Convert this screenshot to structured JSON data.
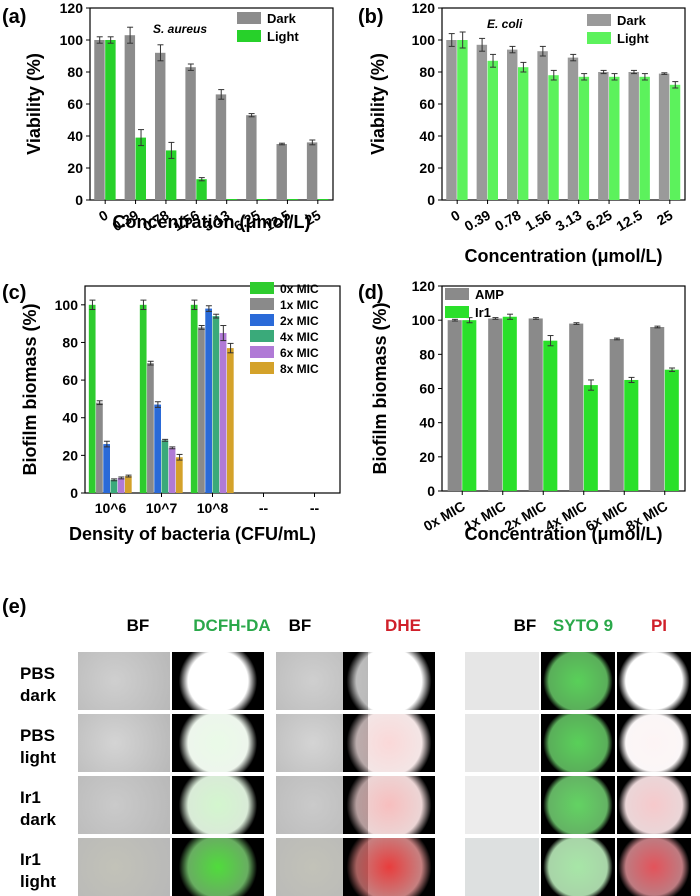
{
  "panels": {
    "a": "(a)",
    "b": "(b)",
    "c": "(c)",
    "d": "(d)",
    "e": "(e)"
  },
  "chart_data": [
    {
      "id": "a",
      "type": "bar",
      "annotation": "S. aureus",
      "xlabel": "Concentration (μmol/L)",
      "ylabel": "Viability (%)",
      "ylim": [
        0,
        120
      ],
      "yticks": [
        0,
        20,
        40,
        60,
        80,
        100,
        120
      ],
      "categories": [
        "0",
        "0.39",
        "0.78",
        "1.56",
        "3.13",
        "6.25",
        "12.5",
        "25"
      ],
      "series": [
        {
          "name": "Dark",
          "color": "#8c8c8c",
          "values": [
            100,
            103,
            92,
            83,
            66,
            53,
            35,
            36
          ],
          "errors": [
            2,
            5,
            5,
            2,
            3,
            1,
            0.5,
            1.5
          ]
        },
        {
          "name": "Light",
          "color": "#27d12a",
          "values": [
            100,
            39,
            31,
            13,
            0,
            0,
            0,
            0
          ],
          "errors": [
            2,
            5,
            5,
            1,
            0,
            0,
            0,
            0
          ]
        }
      ],
      "legend": "top-right",
      "grid": false
    },
    {
      "id": "b",
      "type": "bar",
      "annotation": "E. coli",
      "xlabel": "Concentration (μmol/L)",
      "ylabel": "Viability (%)",
      "ylim": [
        0,
        120
      ],
      "yticks": [
        0,
        20,
        40,
        60,
        80,
        100,
        120
      ],
      "categories": [
        "0",
        "0.39",
        "0.78",
        "1.56",
        "3.13",
        "6.25",
        "12.5",
        "25"
      ],
      "series": [
        {
          "name": "Dark",
          "color": "#9a9a9a",
          "values": [
            100,
            97,
            94,
            93,
            89,
            80,
            80,
            79
          ],
          "errors": [
            4,
            4,
            2,
            3,
            2,
            1,
            1,
            0.5
          ]
        },
        {
          "name": "Light",
          "color": "#5cf25c",
          "values": [
            100,
            87,
            83,
            78,
            77,
            77,
            77,
            72
          ],
          "errors": [
            5,
            4,
            3,
            3,
            2,
            2,
            2,
            2
          ]
        }
      ],
      "legend": "top-right",
      "grid": false
    },
    {
      "id": "c",
      "type": "bar",
      "xlabel": "Density of bacteria (CFU/mL)",
      "ylabel": "Biofilm biomass (%)",
      "ylim": [
        0,
        110
      ],
      "yticks": [
        0,
        20,
        40,
        60,
        80,
        100
      ],
      "categories": [
        "10^6",
        "10^7",
        "10^8",
        "--",
        "--"
      ],
      "series": [
        {
          "name": "0x MIC",
          "color": "#2ecc2e",
          "values": [
            100,
            100,
            100,
            null,
            null
          ],
          "errors": [
            2.5,
            2.5,
            2.5,
            0,
            0
          ]
        },
        {
          "name": "1x MIC",
          "color": "#8a8a8a",
          "values": [
            48,
            69,
            88,
            null,
            null
          ],
          "errors": [
            1,
            1,
            1,
            0,
            0
          ]
        },
        {
          "name": "2x MIC",
          "color": "#2a6ad8",
          "values": [
            26,
            47,
            98,
            null,
            null
          ],
          "errors": [
            1.5,
            1.5,
            1.5,
            0,
            0
          ]
        },
        {
          "name": "4x MIC",
          "color": "#3aaa7a",
          "values": [
            7,
            28,
            94,
            null,
            null
          ],
          "errors": [
            0.5,
            0.5,
            1,
            0,
            0
          ]
        },
        {
          "name": "6x MIC",
          "color": "#b07ad6",
          "values": [
            8,
            24,
            85,
            null,
            null
          ],
          "errors": [
            0.5,
            0.5,
            4,
            0,
            0
          ]
        },
        {
          "name": "8x MIC",
          "color": "#d4a22a",
          "values": [
            9,
            19,
            77,
            null,
            null
          ],
          "errors": [
            0.5,
            1.5,
            2.5,
            0,
            0
          ]
        }
      ],
      "legend": "top-right",
      "grid": false
    },
    {
      "id": "d",
      "type": "bar",
      "xlabel": "Concentration (μmol/L)",
      "ylabel": "Biofilm biomass (%)",
      "ylim": [
        0,
        120
      ],
      "yticks": [
        0,
        20,
        40,
        60,
        80,
        100,
        120
      ],
      "categories": [
        "0x MIC",
        "1x MIC",
        "2x MIC",
        "4x MIC",
        "6x MIC",
        "8x MIC"
      ],
      "series": [
        {
          "name": "AMP",
          "color": "#8a8a8a",
          "values": [
            100,
            101,
            101,
            98,
            89,
            96
          ],
          "errors": [
            0.5,
            0.5,
            0.5,
            0.5,
            0.5,
            0.5
          ]
        },
        {
          "name": "Ir1",
          "color": "#2ae02a",
          "values": [
            100,
            102,
            88,
            62,
            65,
            71
          ],
          "errors": [
            1.5,
            1.5,
            3,
            3,
            1.5,
            1
          ]
        }
      ],
      "legend": "top-left",
      "grid": false
    }
  ],
  "microscopy": {
    "headers": [
      {
        "text": "BF",
        "color": "#000000"
      },
      {
        "text": "DCFH-DA",
        "color": "#2aa84a"
      },
      {
        "text": "BF",
        "color": "#000000"
      },
      {
        "text": "DHE",
        "color": "#d0202a"
      },
      {
        "text": "BF",
        "color": "#000000"
      },
      {
        "text": "SYTO 9",
        "color": "#2aa84a"
      },
      {
        "text": "PI",
        "color": "#d0202a"
      }
    ],
    "rows": [
      {
        "line1": "PBS",
        "line2": "dark"
      },
      {
        "line1": "PBS",
        "line2": "light"
      },
      {
        "line1": "Ir1",
        "line2": "dark"
      },
      {
        "line1": "Ir1",
        "line2": "light"
      }
    ]
  }
}
